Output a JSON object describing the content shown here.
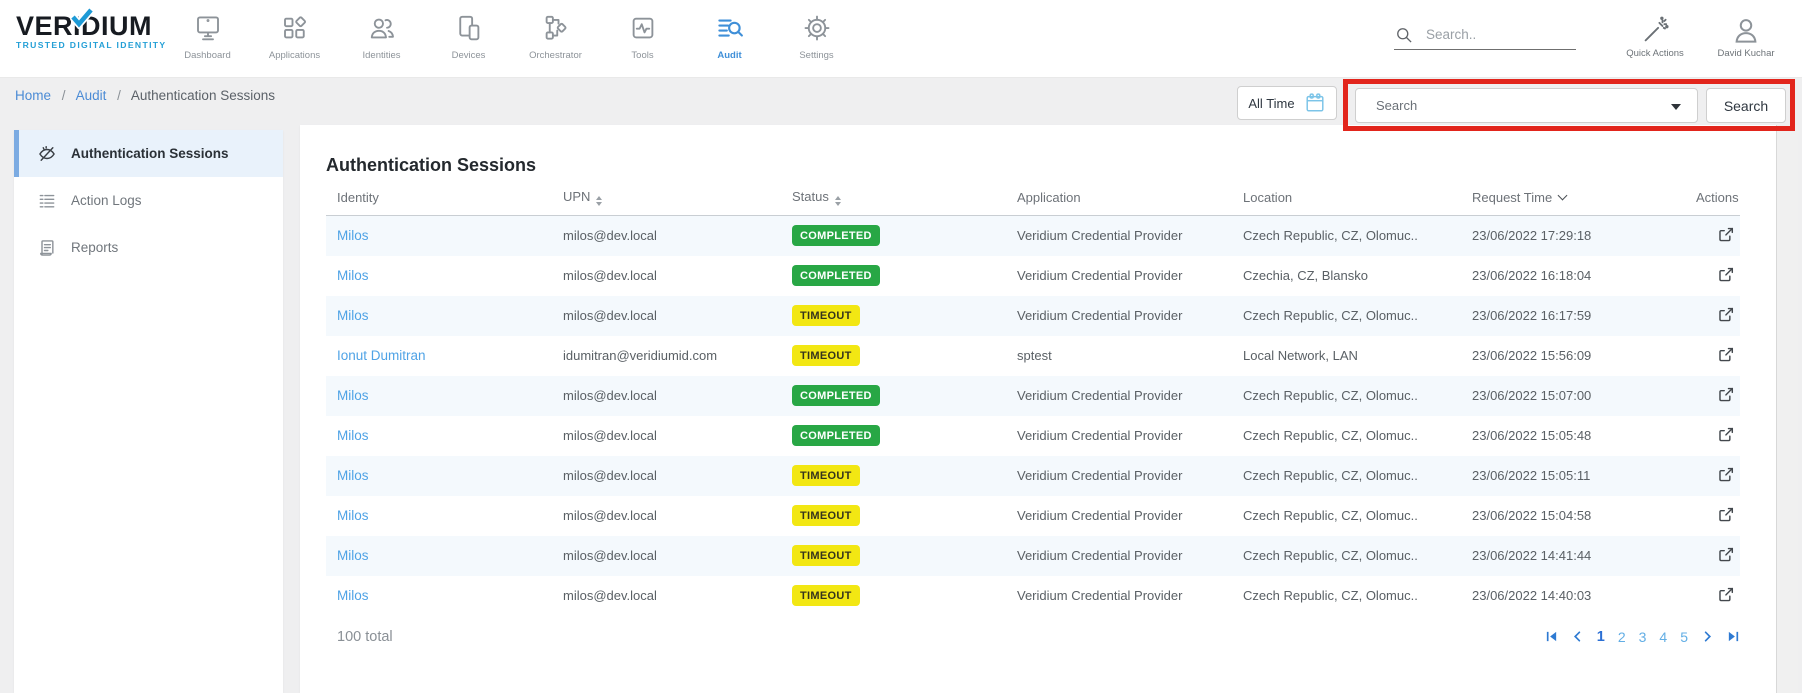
{
  "brand": {
    "name": "VERIDIUM",
    "tagline": "TRUSTED DIGITAL IDENTITY"
  },
  "topnav": {
    "items": [
      {
        "label": "Dashboard",
        "icon": "dashboard-icon",
        "active": false
      },
      {
        "label": "Applications",
        "icon": "applications-icon",
        "active": false
      },
      {
        "label": "Identities",
        "icon": "identities-icon",
        "active": false
      },
      {
        "label": "Devices",
        "icon": "devices-icon",
        "active": false
      },
      {
        "label": "Orchestrator",
        "icon": "orchestrator-icon",
        "active": false
      },
      {
        "label": "Tools",
        "icon": "tools-icon",
        "active": false
      },
      {
        "label": "Audit",
        "icon": "audit-icon",
        "active": true
      },
      {
        "label": "Settings",
        "icon": "settings-icon",
        "active": false
      }
    ]
  },
  "topbar_right": {
    "search_placeholder": "Search..",
    "quick_actions_label": "Quick Actions",
    "user_name": "David Kuchar"
  },
  "breadcrumb": {
    "separator": "/",
    "items": [
      {
        "label": "Home"
      },
      {
        "label": "Audit"
      },
      {
        "label": "Authentication Sessions"
      }
    ]
  },
  "filter_bar": {
    "time_filter_label": "All Time",
    "search_dropdown_placeholder": "Search",
    "search_button_label": "Search"
  },
  "annotation": {
    "type": "highlight-box",
    "color": "#e2251c",
    "target": "search dropdown and search button"
  },
  "sidebar": {
    "items": [
      {
        "label": "Authentication Sessions",
        "icon": "eye-slash-icon",
        "active": true
      },
      {
        "label": "Action Logs",
        "icon": "action-logs-icon",
        "active": false
      },
      {
        "label": "Reports",
        "icon": "reports-icon",
        "active": false
      }
    ]
  },
  "main": {
    "title": "Authentication Sessions",
    "table": {
      "columns": [
        {
          "label": "Identity",
          "sort": "none"
        },
        {
          "label": "UPN",
          "sort": "both"
        },
        {
          "label": "Status",
          "sort": "both"
        },
        {
          "label": "Application",
          "sort": "none"
        },
        {
          "label": "Location",
          "sort": "none"
        },
        {
          "label": "Request Time",
          "sort": "desc"
        },
        {
          "label": "Actions",
          "sort": "none"
        }
      ],
      "rows": [
        {
          "identity": "Milos",
          "upn": "milos@dev.local",
          "status": "COMPLETED",
          "application": "Veridium Credential Provider",
          "location": "Czech Republic, CZ, Olomuc..",
          "request_time": "23/06/2022 17:29:18"
        },
        {
          "identity": "Milos",
          "upn": "milos@dev.local",
          "status": "COMPLETED",
          "application": "Veridium Credential Provider",
          "location": "Czechia, CZ, Blansko",
          "request_time": "23/06/2022 16:18:04"
        },
        {
          "identity": "Milos",
          "upn": "milos@dev.local",
          "status": "TIMEOUT",
          "application": "Veridium Credential Provider",
          "location": "Czech Republic, CZ, Olomuc..",
          "request_time": "23/06/2022 16:17:59"
        },
        {
          "identity": "Ionut Dumitran",
          "upn": "idumitran@veridiumid.com",
          "status": "TIMEOUT",
          "application": "sptest",
          "location": "Local Network, LAN",
          "request_time": "23/06/2022 15:56:09"
        },
        {
          "identity": "Milos",
          "upn": "milos@dev.local",
          "status": "COMPLETED",
          "application": "Veridium Credential Provider",
          "location": "Czech Republic, CZ, Olomuc..",
          "request_time": "23/06/2022 15:07:00"
        },
        {
          "identity": "Milos",
          "upn": "milos@dev.local",
          "status": "COMPLETED",
          "application": "Veridium Credential Provider",
          "location": "Czech Republic, CZ, Olomuc..",
          "request_time": "23/06/2022 15:05:48"
        },
        {
          "identity": "Milos",
          "upn": "milos@dev.local",
          "status": "TIMEOUT",
          "application": "Veridium Credential Provider",
          "location": "Czech Republic, CZ, Olomuc..",
          "request_time": "23/06/2022 15:05:11"
        },
        {
          "identity": "Milos",
          "upn": "milos@dev.local",
          "status": "TIMEOUT",
          "application": "Veridium Credential Provider",
          "location": "Czech Republic, CZ, Olomuc..",
          "request_time": "23/06/2022 15:04:58"
        },
        {
          "identity": "Milos",
          "upn": "milos@dev.local",
          "status": "TIMEOUT",
          "application": "Veridium Credential Provider",
          "location": "Czech Republic, CZ, Olomuc..",
          "request_time": "23/06/2022 14:41:44"
        },
        {
          "identity": "Milos",
          "upn": "milos@dev.local",
          "status": "TIMEOUT",
          "application": "Veridium Credential Provider",
          "location": "Czech Republic, CZ, Olomuc..",
          "request_time": "23/06/2022 14:40:03"
        }
      ],
      "total_label": "100 total"
    },
    "pagination": {
      "pages": [
        "1",
        "2",
        "3",
        "4",
        "5"
      ],
      "current": "1"
    }
  },
  "colors": {
    "status_completed": "#28a745",
    "status_timeout": "#f2e713",
    "accent_blue": "#3f8fd8",
    "link_blue": "#4fa3e6",
    "annotation_red": "#e2251c",
    "sidebar_active_bg": "#e9f2fb",
    "row_stripe": "#f4f9fd"
  }
}
